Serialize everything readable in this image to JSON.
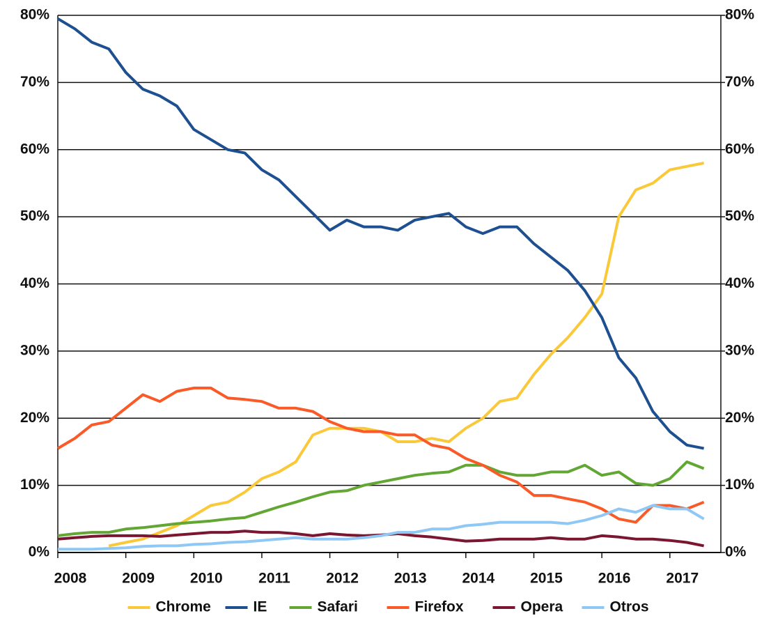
{
  "chart_data": {
    "type": "line",
    "x": [
      2008,
      2008.25,
      2008.5,
      2008.75,
      2009,
      2009.25,
      2009.5,
      2009.75,
      2010,
      2010.25,
      2010.5,
      2010.75,
      2011,
      2011.25,
      2011.5,
      2011.75,
      2012,
      2012.25,
      2012.5,
      2012.75,
      2013,
      2013.25,
      2013.5,
      2013.75,
      2014,
      2014.25,
      2014.5,
      2014.75,
      2015,
      2015.25,
      2015.5,
      2015.75,
      2016,
      2016.25,
      2016.5,
      2016.75,
      2017,
      2017.25,
      2017.5
    ],
    "series": [
      {
        "name": "Chrome",
        "color": "#f9c93a",
        "values": [
          null,
          null,
          null,
          1,
          1.5,
          2,
          3,
          4,
          5.5,
          7,
          7.5,
          9,
          11,
          12,
          13.5,
          17.5,
          18.5,
          18.5,
          18.5,
          18,
          16.5,
          16.5,
          17,
          16.5,
          18.5,
          20,
          22.5,
          23,
          26.5,
          29.5,
          32,
          35,
          38.5,
          50,
          54,
          55,
          57,
          57.5,
          58
        ]
      },
      {
        "name": "IE",
        "color": "#1d4f91",
        "values": [
          79.5,
          78,
          76,
          75,
          71.5,
          69,
          68,
          66.5,
          63,
          61.5,
          60,
          59.5,
          57,
          55.5,
          53,
          50.5,
          48,
          49.5,
          48.5,
          48.5,
          48,
          49.5,
          50,
          50.5,
          48.5,
          47.5,
          48.5,
          48.5,
          46,
          44,
          42,
          39,
          35,
          29,
          26,
          21,
          18,
          16,
          15.5
        ]
      },
      {
        "name": "Safari",
        "color": "#62a633",
        "values": [
          2.5,
          2.8,
          3,
          3,
          3.5,
          3.7,
          4,
          4.3,
          4.5,
          4.7,
          5,
          5.2,
          6,
          6.8,
          7.5,
          8.3,
          9,
          9.2,
          10,
          10.5,
          11,
          11.5,
          11.8,
          12,
          13,
          13,
          12,
          11.5,
          11.5,
          12,
          12,
          13,
          11.5,
          12,
          10.3,
          10,
          11,
          13.5,
          12.5
        ]
      },
      {
        "name": "Firefox",
        "color": "#f95a27",
        "values": [
          15.5,
          17,
          19,
          19.5,
          21.5,
          23.5,
          22.5,
          24,
          24.5,
          24.5,
          23,
          22.8,
          22.5,
          21.5,
          21.5,
          21,
          19.5,
          18.5,
          18,
          18,
          17.5,
          17.5,
          16,
          15.5,
          14,
          13,
          11.5,
          10.5,
          8.5,
          8.5,
          8,
          7.5,
          6.5,
          5,
          4.5,
          7,
          7,
          6.5,
          7.5
        ]
      },
      {
        "name": "Opera",
        "color": "#7b1630",
        "values": [
          2,
          2.2,
          2.4,
          2.5,
          2.5,
          2.5,
          2.4,
          2.6,
          2.8,
          3,
          3,
          3.2,
          3,
          3,
          2.8,
          2.5,
          2.8,
          2.6,
          2.5,
          2.6,
          2.8,
          2.5,
          2.3,
          2,
          1.7,
          1.8,
          2,
          2,
          2,
          2.2,
          2,
          2,
          2.5,
          2.3,
          2,
          2,
          1.8,
          1.5,
          1
        ]
      },
      {
        "name": "Otros",
        "color": "#8fc8f4",
        "values": [
          0.5,
          0.5,
          0.5,
          0.6,
          0.7,
          0.9,
          1,
          1,
          1.2,
          1.3,
          1.5,
          1.6,
          1.8,
          2,
          2.2,
          2,
          2,
          2,
          2.2,
          2.5,
          3,
          3,
          3.5,
          3.5,
          4,
          4.2,
          4.5,
          4.5,
          4.5,
          4.5,
          4.3,
          4.8,
          5.5,
          6.5,
          6,
          7,
          6.5,
          6.5,
          5
        ]
      }
    ],
    "xlim": [
      2008,
      2017.75
    ],
    "xticks": [
      2008,
      2009,
      2010,
      2011,
      2012,
      2013,
      2014,
      2015,
      2016,
      2017
    ],
    "ylim": [
      0,
      80
    ],
    "yticks": [
      {
        "value": 0,
        "label": "0%"
      },
      {
        "value": 10,
        "label": "10%"
      },
      {
        "value": 20,
        "label": "20%"
      },
      {
        "value": 30,
        "label": "30%"
      },
      {
        "value": 40,
        "label": "40%"
      },
      {
        "value": 50,
        "label": "50%"
      },
      {
        "value": 60,
        "label": "60%"
      },
      {
        "value": 70,
        "label": "70%"
      },
      {
        "value": 80,
        "label": "80%"
      }
    ],
    "y2lim": [
      0,
      80
    ],
    "y2ticks": [
      {
        "value": 0,
        "label": "0%"
      },
      {
        "value": 10,
        "label": "10%"
      },
      {
        "value": 20,
        "label": "20%"
      },
      {
        "value": 30,
        "label": "30%"
      },
      {
        "value": 40,
        "label": "40%"
      },
      {
        "value": 50,
        "label": "50%"
      },
      {
        "value": 60,
        "label": "60%"
      },
      {
        "value": 70,
        "label": "70%"
      },
      {
        "value": 80,
        "label": "80%"
      }
    ],
    "grid": true,
    "legend": "bottom"
  }
}
